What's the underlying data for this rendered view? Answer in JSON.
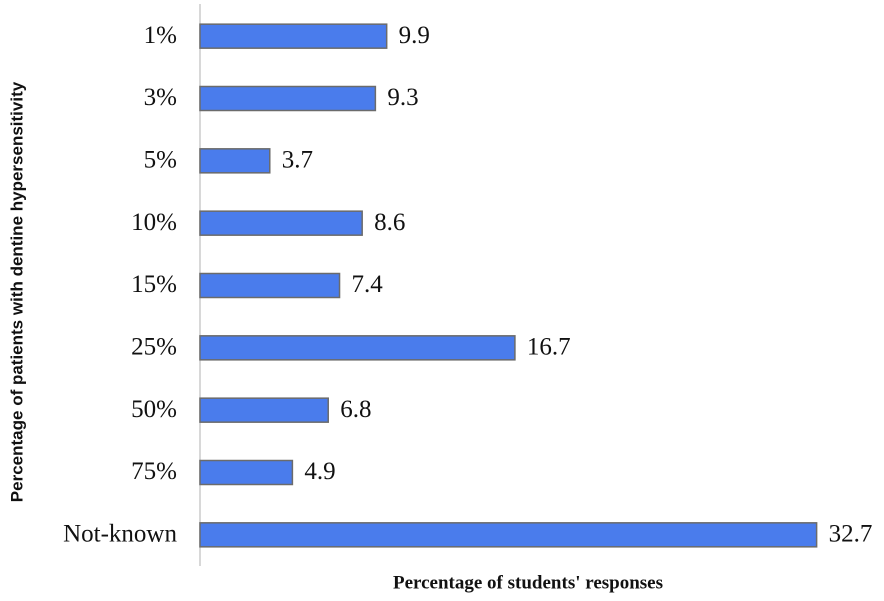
{
  "chart_data": {
    "type": "bar",
    "orientation": "horizontal",
    "y_label": "Percentage of patients with dentine hypersensitivity",
    "x_label": "Percentage of students' responses",
    "categories": [
      "1%",
      "3%",
      "5%",
      "10%",
      "15%",
      "25%",
      "50%",
      "75%",
      "Not-known"
    ],
    "values": [
      9.9,
      9.3,
      3.7,
      8.6,
      7.4,
      16.7,
      6.8,
      4.9,
      32.7
    ],
    "color": "#4a7cec",
    "xlim": [
      0,
      35
    ]
  }
}
